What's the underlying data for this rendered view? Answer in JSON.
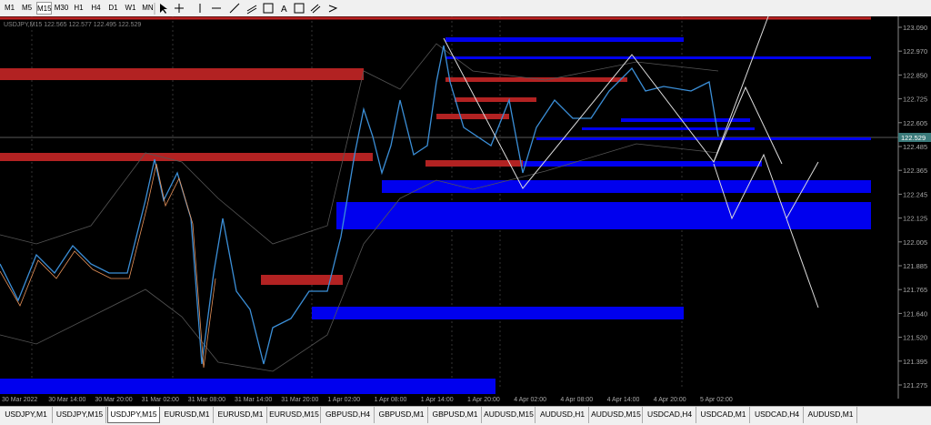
{
  "toolbar": {
    "timeframes": [
      "M1",
      "M5",
      "M15",
      "M30",
      "H1",
      "H4",
      "D1",
      "W1",
      "MN"
    ],
    "active": "M15"
  },
  "chart": {
    "header": "USDJPY,M15  122.565 122.577 122.495 122.529",
    "current_price": "122.529",
    "price_labels": [
      "123.090",
      "122.970",
      "122.850",
      "122.725",
      "122.605",
      "122.485",
      "122.365",
      "122.245",
      "122.125",
      "122.005",
      "121.885",
      "121.765",
      "121.640",
      "121.520",
      "121.395",
      "121.275"
    ],
    "time_labels": [
      "30 Mar 2022",
      "30 Mar 14:00",
      "30 Mar 20:00",
      "31 Mar 02:00",
      "31 Mar 08:00",
      "31 Mar 14:00",
      "31 Mar 20:00",
      "1 Apr 02:00",
      "1 Apr 08:00",
      "1 Apr 14:00",
      "1 Apr 20:00",
      "4 Apr 02:00",
      "4 Apr 08:00",
      "4 Apr 14:00",
      "4 Apr 20:00",
      "5 Apr 02:00"
    ]
  },
  "tabs": {
    "items": [
      "USDJPY,M1",
      "USDJPY,M15",
      "USDJPY,M15",
      "EURUSD,M1",
      "EURUSD,M1",
      "EURUSD,M15",
      "GBPUSD,H4",
      "GBPUSD,M1",
      "GBPUSD,M1",
      "AUDUSD,M15",
      "AUDUSD,H1",
      "AUDUSD,M15",
      "USDCAD,H4",
      "USDCAD,M1",
      "USDCAD,H4",
      "AUDUSD,M1"
    ],
    "active_index": 2
  }
}
